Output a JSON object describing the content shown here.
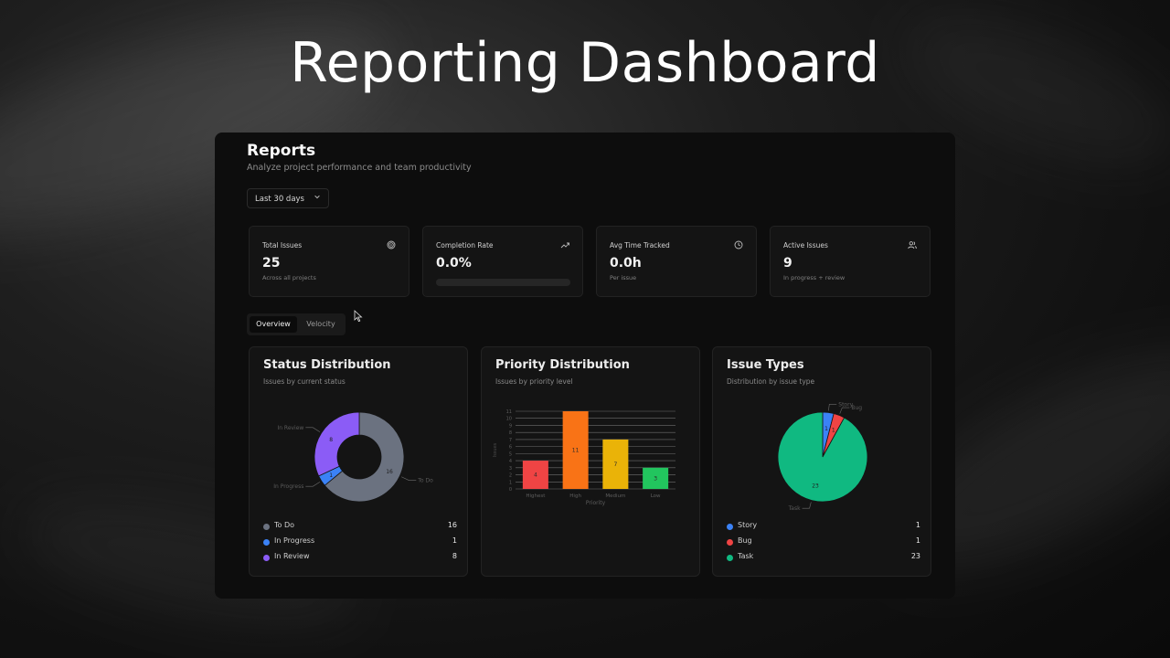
{
  "hero": {
    "title": "Reporting Dashboard"
  },
  "header": {
    "title": "Reports",
    "subtitle": "Analyze project performance and team productivity",
    "date_range": {
      "selected": "Last 30 days",
      "icon": "chevron-down-icon"
    }
  },
  "stats": [
    {
      "label": "Total Issues",
      "value": "25",
      "note": "Across all projects",
      "icon": "target-icon"
    },
    {
      "label": "Completion Rate",
      "value": "0.0%",
      "progress_percent": 0,
      "icon": "trending-up-icon"
    },
    {
      "label": "Avg Time Tracked",
      "value": "0.0h",
      "note": "Per issue",
      "icon": "clock-icon"
    },
    {
      "label": "Active Issues",
      "value": "9",
      "note": "In progress + review",
      "icon": "users-icon"
    }
  ],
  "tabs": [
    {
      "label": "Overview",
      "active": true
    },
    {
      "label": "Velocity",
      "active": false
    }
  ],
  "cards": {
    "status": {
      "title": "Status Distribution",
      "subtitle": "Issues by current status"
    },
    "priority": {
      "title": "Priority Distribution",
      "subtitle": "Issues by priority level"
    },
    "types": {
      "title": "Issue Types",
      "subtitle": "Distribution by issue type"
    }
  },
  "chart_data": [
    {
      "type": "pie",
      "variant": "donut",
      "title": "Status Distribution",
      "categories": [
        "To Do",
        "In Progress",
        "In Review"
      ],
      "values": [
        16,
        1,
        8
      ],
      "colors": [
        "#6b7280",
        "#3b82f6",
        "#8b5cf6"
      ]
    },
    {
      "type": "bar",
      "title": "Priority Distribution",
      "categories": [
        "Highest",
        "High",
        "Medium",
        "Low"
      ],
      "values": [
        4,
        11,
        7,
        3
      ],
      "colors": [
        "#ef4444",
        "#f97316",
        "#eab308",
        "#22c55e"
      ],
      "xlabel": "Priority",
      "ylabel": "Issues",
      "ylim": [
        0,
        11
      ],
      "yticks": [
        0,
        1,
        2,
        3,
        4,
        5,
        6,
        7,
        8,
        9,
        10,
        11
      ],
      "grid": true
    },
    {
      "type": "pie",
      "title": "Issue Types",
      "categories": [
        "Story",
        "Bug",
        "Task"
      ],
      "values": [
        1,
        1,
        23
      ],
      "colors": [
        "#3b82f6",
        "#ef4444",
        "#10b981"
      ]
    }
  ]
}
